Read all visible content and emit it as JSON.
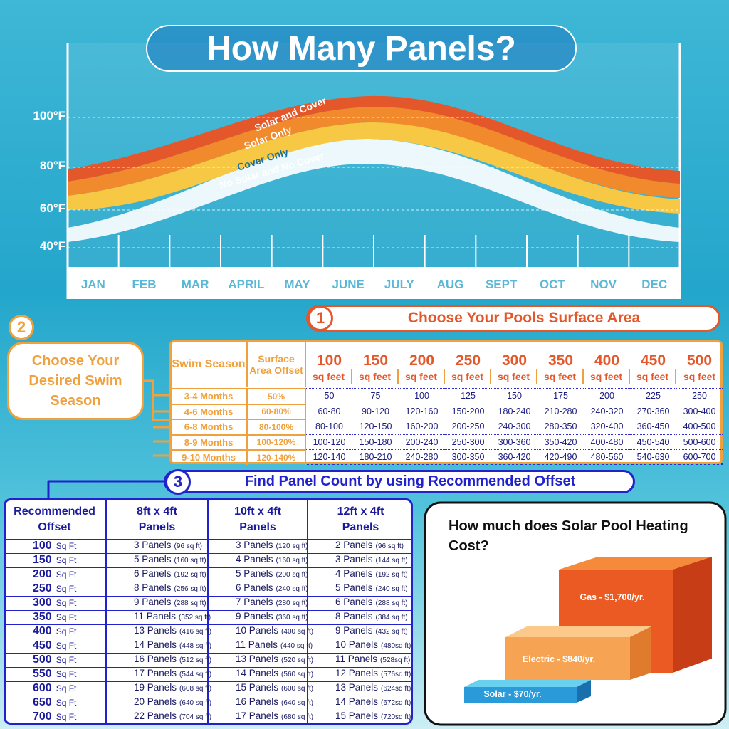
{
  "header": {
    "title": "How Many Panels?"
  },
  "temperature_chart": {
    "y_labels": [
      "100°F",
      "80°F",
      "60°F",
      "40°F"
    ],
    "months": [
      "JAN",
      "FEB",
      "MAR",
      "APRIL",
      "MAY",
      "JUNE",
      "JULY",
      "AUG",
      "SEPT",
      "OCT",
      "NOV",
      "DEC"
    ],
    "bands": [
      "Solar and Cover",
      "Solar Only",
      "Cover Only",
      "No Solar and No Cover"
    ]
  },
  "step1": {
    "number": "1",
    "title": "Choose Your Pools Surface Area"
  },
  "step2": {
    "number": "2",
    "title": "Choose Your Desired Swim Season"
  },
  "step3": {
    "number": "3",
    "title": "Find Panel Count by using Recommended Offset"
  },
  "season_table": {
    "headers": [
      "Swim Season",
      "Surface Area Offset"
    ],
    "areas": [
      {
        "value": "100",
        "unit": "sq feet"
      },
      {
        "value": "150",
        "unit": "sq feet"
      },
      {
        "value": "200",
        "unit": "sq feet"
      },
      {
        "value": "250",
        "unit": "sq feet"
      },
      {
        "value": "300",
        "unit": "sq feet"
      },
      {
        "value": "350",
        "unit": "sq feet"
      },
      {
        "value": "400",
        "unit": "sq feet"
      },
      {
        "value": "450",
        "unit": "sq feet"
      },
      {
        "value": "500",
        "unit": "sq feet"
      }
    ],
    "rows": [
      {
        "season": "3-4 Months",
        "offset": "50%",
        "cells": [
          "50",
          "75",
          "100",
          "125",
          "150",
          "175",
          "200",
          "225",
          "250"
        ]
      },
      {
        "season": "4-6 Months",
        "offset": "60-80%",
        "cells": [
          "60-80",
          "90-120",
          "120-160",
          "150-200",
          "180-240",
          "210-280",
          "240-320",
          "270-360",
          "300-400"
        ]
      },
      {
        "season": "6-8 Months",
        "offset": "80-100%",
        "cells": [
          "80-100",
          "120-150",
          "160-200",
          "200-250",
          "240-300",
          "280-350",
          "320-400",
          "360-450",
          "400-500"
        ]
      },
      {
        "season": "8-9 Months",
        "offset": "100-120%",
        "cells": [
          "100-120",
          "150-180",
          "200-240",
          "250-300",
          "300-360",
          "350-420",
          "400-480",
          "450-540",
          "500-600"
        ]
      },
      {
        "season": "9-10 Months",
        "offset": "120-140%",
        "cells": [
          "120-140",
          "180-210",
          "240-280",
          "300-350",
          "360-420",
          "420-490",
          "480-560",
          "540-630",
          "600-700"
        ]
      }
    ]
  },
  "panel_table": {
    "headers": [
      "Recommended Offset",
      "8ft x 4ft Panels",
      "10ft x 4ft Panels",
      "12ft x 4ft Panels"
    ],
    "rows": [
      {
        "offset": "100",
        "unit": "Sq Ft",
        "cells": [
          {
            "count": "3 Panels",
            "area": "(96 sq ft)"
          },
          {
            "count": "3 Panels",
            "area": "(120 sq ft)"
          },
          {
            "count": "2 Panels",
            "area": "(96 sq ft)"
          }
        ]
      },
      {
        "offset": "150",
        "unit": "Sq Ft",
        "cells": [
          {
            "count": "5 Panels",
            "area": "(160 sq ft)"
          },
          {
            "count": "4 Panels",
            "area": "(160 sq ft)"
          },
          {
            "count": "3 Panels",
            "area": "(144 sq ft)"
          }
        ]
      },
      {
        "offset": "200",
        "unit": "Sq Ft",
        "cells": [
          {
            "count": "6 Panels",
            "area": "(192 sq ft)"
          },
          {
            "count": "5 Panels",
            "area": "(200 sq ft)"
          },
          {
            "count": "4 Panels",
            "area": "(192 sq ft)"
          }
        ]
      },
      {
        "offset": "250",
        "unit": "Sq Ft",
        "cells": [
          {
            "count": "8 Panels",
            "area": "(256 sq ft)"
          },
          {
            "count": "6 Panels",
            "area": "(240 sq ft)"
          },
          {
            "count": "5 Panels",
            "area": "(240 sq ft)"
          }
        ]
      },
      {
        "offset": "300",
        "unit": "Sq Ft",
        "cells": [
          {
            "count": "9 Panels",
            "area": "(288 sq ft)"
          },
          {
            "count": "7 Panels",
            "area": "(280 sq ft)"
          },
          {
            "count": "6 Panels",
            "area": "(288 sq ft)"
          }
        ]
      },
      {
        "offset": "350",
        "unit": "Sq Ft",
        "cells": [
          {
            "count": "11 Panels",
            "area": "(352 sq ft)"
          },
          {
            "count": "9 Panels",
            "area": "(360 sq ft)"
          },
          {
            "count": "8 Panels",
            "area": "(384 sq ft)"
          }
        ]
      },
      {
        "offset": "400",
        "unit": "Sq Ft",
        "cells": [
          {
            "count": "13 Panels",
            "area": "(416 sq ft)"
          },
          {
            "count": "10 Panels",
            "area": "(400 sq ft)"
          },
          {
            "count": "9 Panels",
            "area": "(432 sq ft)"
          }
        ]
      },
      {
        "offset": "450",
        "unit": "Sq Ft",
        "cells": [
          {
            "count": "14 Panels",
            "area": "(448 sq ft)"
          },
          {
            "count": "11 Panels",
            "area": "(440 sq ft)"
          },
          {
            "count": "10 Panels",
            "area": "(480sq ft)"
          }
        ]
      },
      {
        "offset": "500",
        "unit": "Sq Ft",
        "cells": [
          {
            "count": "16 Panels",
            "area": "(512 sq ft)"
          },
          {
            "count": "13 Panels",
            "area": "(520 sq ft)"
          },
          {
            "count": "11 Panels",
            "area": "(528sq ft)"
          }
        ]
      },
      {
        "offset": "550",
        "unit": "Sq Ft",
        "cells": [
          {
            "count": "17 Panels",
            "area": "(544 sq ft)"
          },
          {
            "count": "14 Panels",
            "area": "(560 sq ft)"
          },
          {
            "count": "12 Panels",
            "area": "(576sq ft)"
          }
        ]
      },
      {
        "offset": "600",
        "unit": "Sq Ft",
        "cells": [
          {
            "count": "19 Panels",
            "area": "(608 sq ft)"
          },
          {
            "count": "15 Panels",
            "area": "(600 sq ft)"
          },
          {
            "count": "13 Panels",
            "area": "(624sq ft)"
          }
        ]
      },
      {
        "offset": "650",
        "unit": "Sq Ft",
        "cells": [
          {
            "count": "20 Panels",
            "area": "(640 sq ft)"
          },
          {
            "count": "16 Panels",
            "area": "(640 sq ft)"
          },
          {
            "count": "14 Panels",
            "area": "(672sq ft)"
          }
        ]
      },
      {
        "offset": "700",
        "unit": "Sq Ft",
        "cells": [
          {
            "count": "22 Panels",
            "area": "(704 sq ft)"
          },
          {
            "count": "17 Panels",
            "area": "(680 sq ft)"
          },
          {
            "count": "15 Panels",
            "area": "(720sq ft)"
          }
        ]
      }
    ]
  },
  "cost": {
    "title": "How much does Solar Pool Heating Cost?",
    "items": [
      "Gas - $1,700/yr.",
      "Electric - $840/yr.",
      "Solar - $70/yr."
    ]
  }
}
